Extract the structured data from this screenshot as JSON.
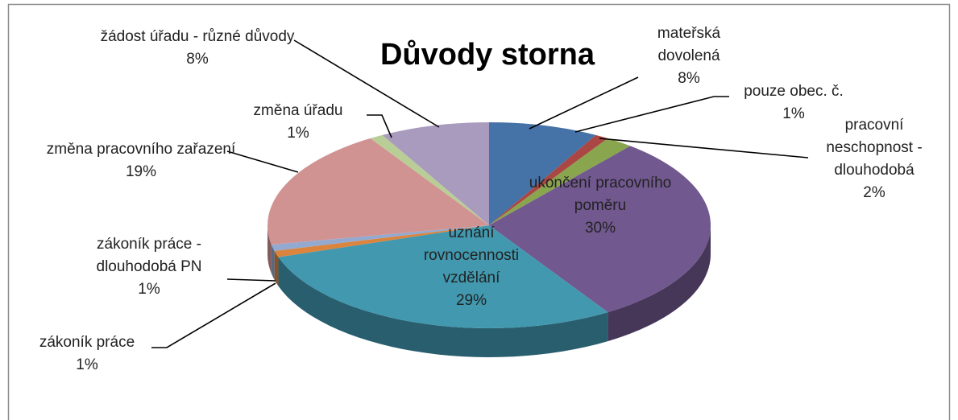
{
  "chart_data": {
    "type": "pie3d",
    "title": "Důvody storna",
    "categories": [
      "mateřská dovolená",
      "pouze obec. č.",
      "pracovní neschopnost - dlouhodobá",
      "ukončení pracovního poměru",
      "uznání rovnocennosti vzdělání",
      "zákoník práce",
      "zákoník práce - dlouhodobá PN",
      "změna pracovního zařazení",
      "změna úřadu",
      "žádost úřadu - různé důvody"
    ],
    "values": [
      8,
      1,
      2,
      30,
      29,
      1,
      1,
      19,
      1,
      8
    ],
    "value_labels": [
      "8%",
      "1%",
      "2%",
      "30%",
      "29%",
      "1%",
      "1%",
      "19%",
      "1%",
      "8%"
    ],
    "colors": [
      "#4572a7",
      "#aa4643",
      "#89a54e",
      "#71588f",
      "#4198af",
      "#db843d",
      "#93a9cf",
      "#d19392",
      "#b9cd96",
      "#a99bbd"
    ]
  }
}
